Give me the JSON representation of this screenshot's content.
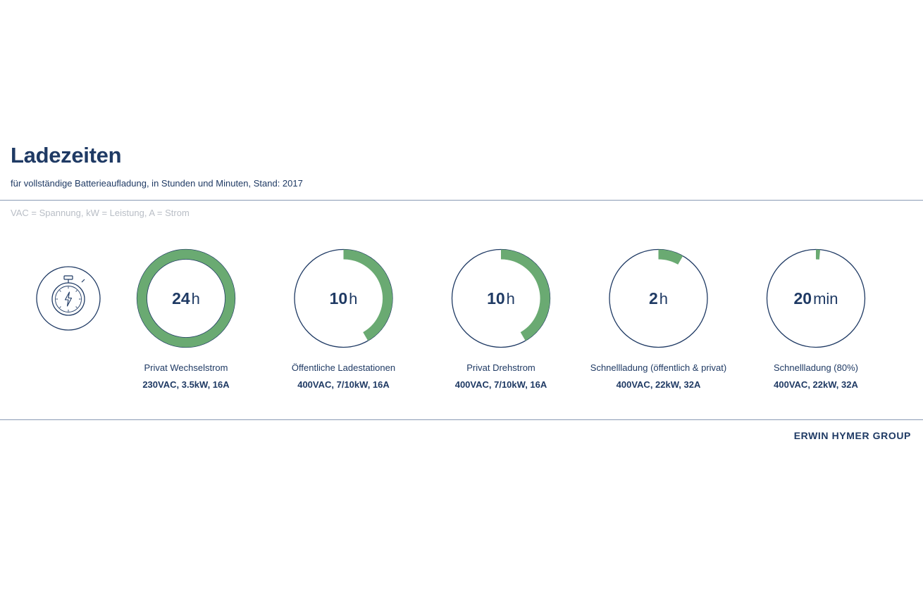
{
  "header": {
    "title": "Ladezeiten",
    "subtitle": "für vollständige Batterieaufladung, in Stunden und Minuten, Stand: 2017",
    "legend_note": "VAC = Spannung, kW = Leistung, A = Strom"
  },
  "footer": {
    "brand": "ERWIN HYMER GROUP"
  },
  "icon": {
    "name": "stopwatch-lightning-icon"
  },
  "colors": {
    "primary": "#1f3a64",
    "accent": "#6aaa72",
    "muted": "#b9bec6",
    "rule": "#8a9bb4"
  },
  "chart_data": {
    "type": "pie",
    "full_scale_hours": 24,
    "items": [
      {
        "number": "24",
        "unit": "h",
        "hours": 24,
        "label": "Privat Wechselstrom",
        "spec": "230VAC, 3.5kW, 16A"
      },
      {
        "number": "10",
        "unit": "h",
        "hours": 10,
        "label": "Öffentliche Ladestationen",
        "spec": "400VAC, 7/10kW, 16A"
      },
      {
        "number": "10",
        "unit": "h",
        "hours": 10,
        "label": "Privat Drehstrom",
        "spec": "400VAC, 7/10kW, 16A"
      },
      {
        "number": "2",
        "unit": "h",
        "hours": 2,
        "label": "Schnellladung (öffentlich & privat)",
        "spec": "400VAC, 22kW, 32A"
      },
      {
        "number": "20",
        "unit": "min",
        "hours": 0.3333,
        "label": "Schnellladung (80%)",
        "spec": "400VAC, 22kW, 32A"
      }
    ]
  }
}
